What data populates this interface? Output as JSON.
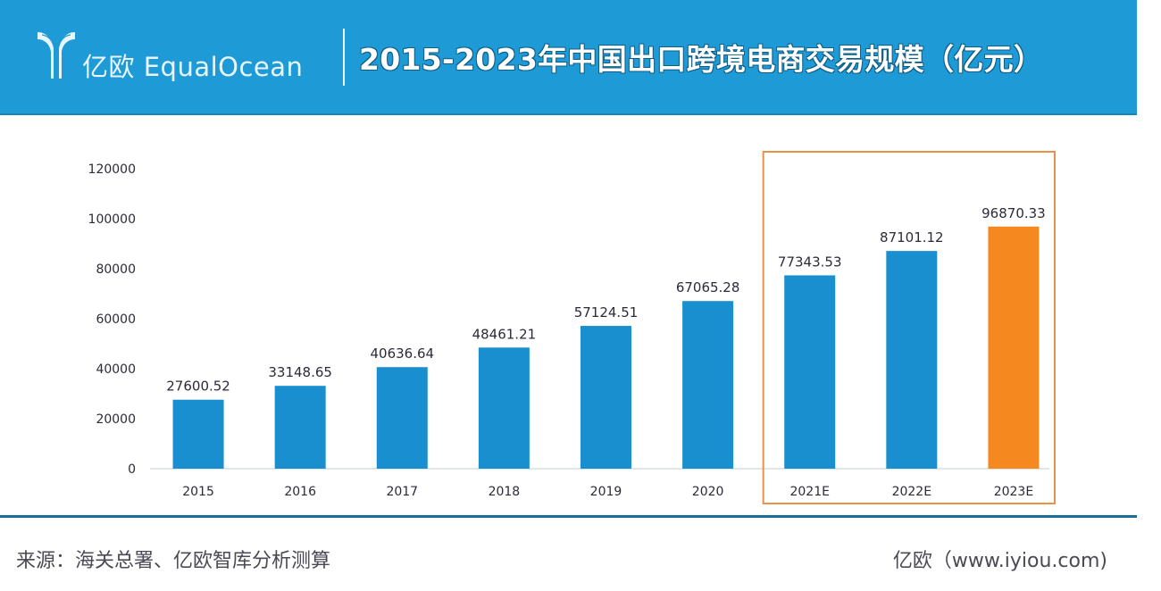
{
  "header": {
    "brand_text": "亿欧 EqualOcean",
    "title": "2015-2023年中国出口跨境电商交易规模（亿元）"
  },
  "footer": {
    "source": "来源：海关总署、亿欧智库分析测算",
    "credit": "亿欧（www.iyiou.com)"
  },
  "colors": {
    "header_bg": "#1e9ad6",
    "bar_default": "#1a8fcf",
    "bar_highlight": "#f5891f",
    "highlight_box": "#e8914a",
    "footer_line": "#1a6f96"
  },
  "chart_data": {
    "type": "bar",
    "title": "2015-2023年中国出口跨境电商交易规模（亿元）",
    "xlabel": "",
    "ylabel": "",
    "categories": [
      "2015",
      "2016",
      "2017",
      "2018",
      "2019",
      "2020",
      "2021E",
      "2022E",
      "2023E"
    ],
    "values": [
      27600.52,
      33148.65,
      40636.64,
      48461.21,
      57124.51,
      67065.28,
      77343.53,
      87101.12,
      96870.33
    ],
    "value_labels": [
      "27600.52",
      "33148.65",
      "40636.64",
      "48461.21",
      "57124.51",
      "67065.28",
      "77343.53",
      "87101.12",
      "96870.33"
    ],
    "highlighted_index": 8,
    "estimate_group": [
      "2021E",
      "2022E",
      "2023E"
    ],
    "ylim": [
      0,
      120000
    ],
    "yticks": [
      0,
      20000,
      40000,
      60000,
      80000,
      100000,
      120000
    ],
    "ytick_labels": [
      "0",
      "20000",
      "40000",
      "60000",
      "80000",
      "100000",
      "120000"
    ],
    "grid": false,
    "legend": "none"
  }
}
